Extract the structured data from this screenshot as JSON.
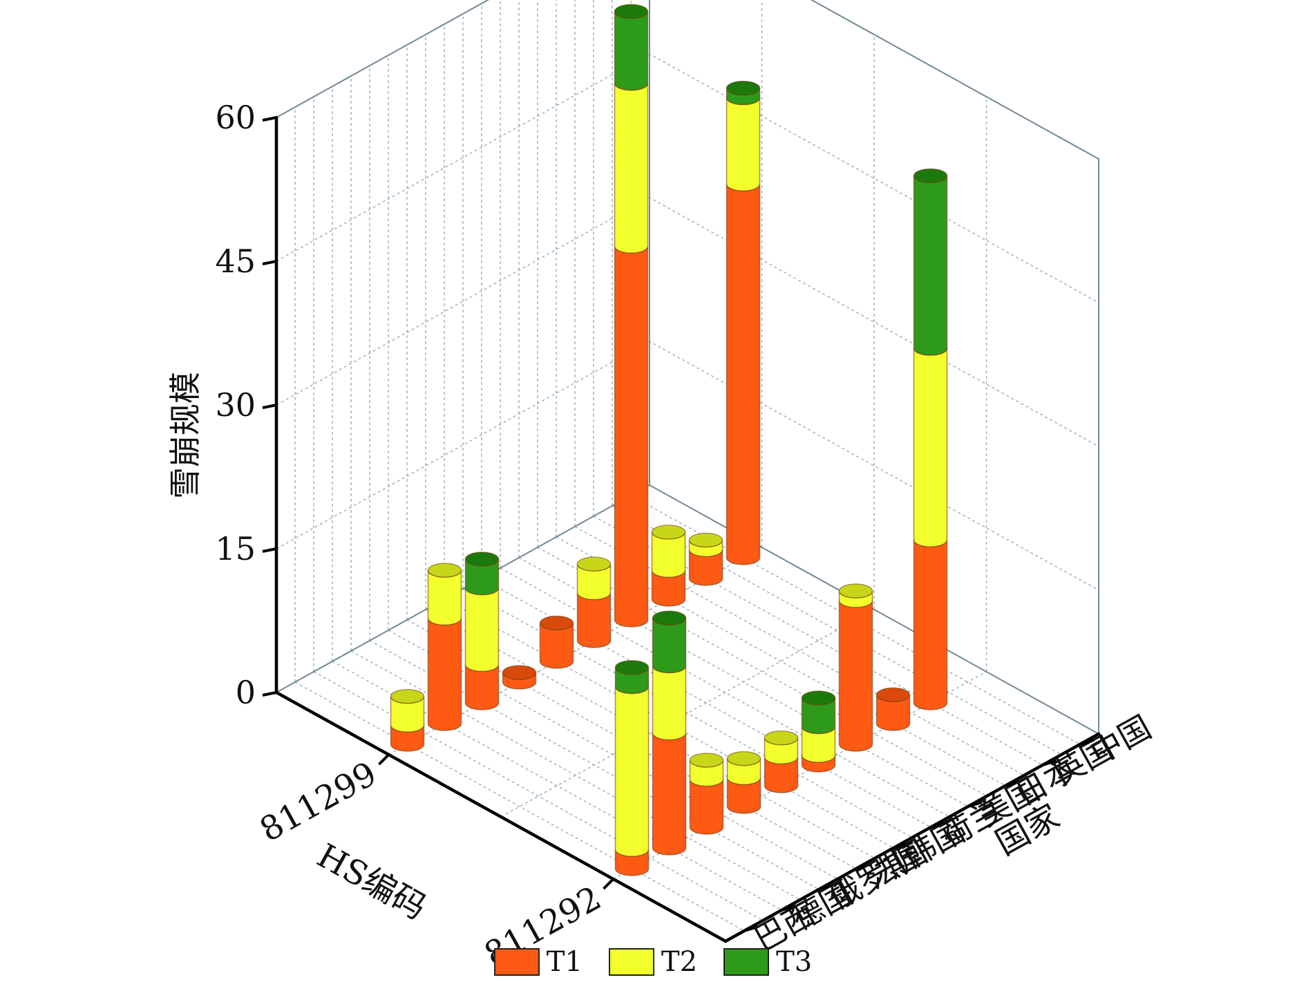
{
  "chart_data": {
    "type": "bar",
    "subtype": "3d-stacked-cylinder",
    "title": "",
    "zlabel": "雪崩规模",
    "xlabel": "HS编码",
    "ylabel": "国家",
    "zlim": [
      0,
      60
    ],
    "z_ticks": [
      "0",
      "15",
      "30",
      "45",
      "60"
    ],
    "codes": [
      "811299",
      "811292"
    ],
    "countries": [
      "巴西",
      "德国",
      "俄罗斯",
      "法国",
      "韩国",
      "荷兰",
      "美国",
      "日本",
      "英国",
      "中国"
    ],
    "series": [
      {
        "name": "T1",
        "color": "#ff5a14",
        "top_color": "#d94a0a"
      },
      {
        "name": "T2",
        "color": "#f2ff2c",
        "top_color": "#c8d61a"
      },
      {
        "name": "T3",
        "color": "#2e9a1a",
        "top_color": "#1c7a0c"
      }
    ],
    "bars": [
      {
        "code": "811299",
        "country": "巴西",
        "values": [
          2,
          3,
          0
        ]
      },
      {
        "code": "811299",
        "country": "德国",
        "values": [
          11,
          5,
          0
        ]
      },
      {
        "code": "811299",
        "country": "俄罗斯",
        "values": [
          4,
          8,
          3
        ]
      },
      {
        "code": "811299",
        "country": "法国",
        "values": [
          1,
          0,
          0
        ]
      },
      {
        "code": "811299",
        "country": "韩国",
        "values": [
          4,
          0,
          0
        ]
      },
      {
        "code": "811299",
        "country": "荷兰",
        "values": [
          5,
          3,
          0
        ]
      },
      {
        "code": "811299",
        "country": "美国",
        "values": [
          39,
          17,
          7.5
        ]
      },
      {
        "code": "811299",
        "country": "日本",
        "values": [
          3,
          4,
          0
        ]
      },
      {
        "code": "811299",
        "country": "英国",
        "values": [
          3,
          1,
          0
        ]
      },
      {
        "code": "811299",
        "country": "中国",
        "values": [
          39,
          9,
          1
        ]
      },
      {
        "code": "811292",
        "country": "巴西",
        "values": [
          2,
          17,
          2
        ]
      },
      {
        "code": "811292",
        "country": "德国",
        "values": [
          12,
          7,
          5
        ]
      },
      {
        "code": "811292",
        "country": "俄罗斯",
        "values": [
          5,
          2,
          0
        ]
      },
      {
        "code": "811292",
        "country": "法国",
        "values": [
          3,
          2,
          0
        ]
      },
      {
        "code": "811292",
        "country": "韩国",
        "values": [
          3,
          2,
          0
        ]
      },
      {
        "code": "811292",
        "country": "荷兰",
        "values": [
          1,
          3,
          3
        ]
      },
      {
        "code": "811292",
        "country": "美国",
        "values": [
          15,
          1,
          0
        ]
      },
      {
        "code": "811292",
        "country": "日本",
        "values": [
          3,
          0,
          0
        ]
      },
      {
        "code": "811292",
        "country": "英国",
        "values": [
          17,
          20,
          18
        ]
      },
      {
        "code": "811292",
        "country": "中国",
        "values": [
          0,
          0,
          0
        ]
      }
    ],
    "grid": true
  }
}
